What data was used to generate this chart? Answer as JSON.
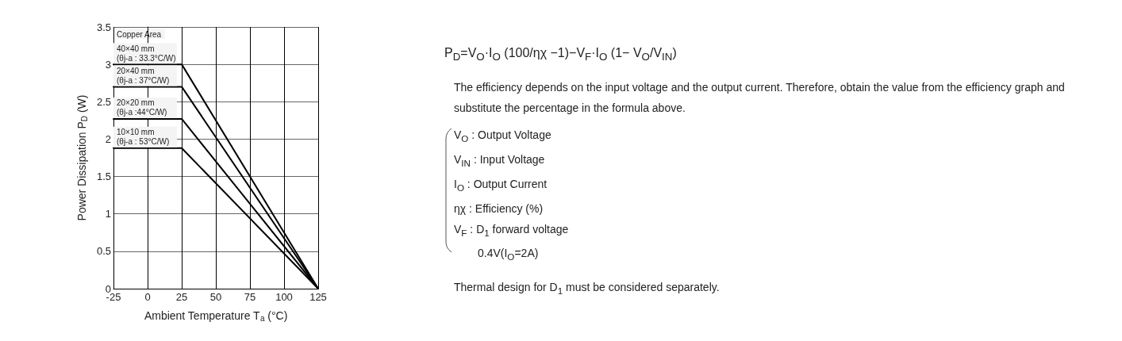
{
  "chart_data": {
    "type": "line",
    "xlabel": "Ambient Temperature T$_{a}$ (°C)",
    "ylabel": "Power Dissipation P$_{D}$ (W)",
    "legend_title": "Copper Area",
    "x": [
      -25,
      25,
      125
    ],
    "series": [
      {
        "name": "40×40 mm (θj-a : 33.3°C/W)",
        "color": "#000000",
        "values": [
          3.0,
          3.0,
          0
        ]
      },
      {
        "name": "20×40 mm (θj-a : 37°C/W)",
        "color": "#000000",
        "values": [
          2.7,
          2.7,
          0
        ]
      },
      {
        "name": "20×20 mm (θj-a :44°C/W)",
        "color": "#000000",
        "values": [
          2.27,
          2.27,
          0
        ]
      },
      {
        "name": "10×10 mm (θj-a : 53°C/W)",
        "color": "#000000",
        "values": [
          1.88,
          1.88,
          0
        ]
      }
    ],
    "xlim": [
      -25,
      125
    ],
    "xticks": [
      -25,
      0,
      25,
      50,
      75,
      100,
      125
    ],
    "ylim": [
      0,
      3.5
    ],
    "yticks": [
      0,
      0.5,
      1,
      1.5,
      2,
      2.5,
      3,
      3.5
    ],
    "grid": true,
    "legend": false,
    "marker": "none",
    "line_style": "solid",
    "annotations": [
      "P$_{D}$=V$_{O}$·I$_{O}$ (100/ηχ −1)−V$_{F}$·I$_{O}$ (1− V$_{O}$/V$_{IN}$)",
      "The efficiency depends on the input voltage and the output current. Therefore, obtain the value from the efficiency graph and substitute the percentage in the formula above.",
      "V$_{O}$ : Output Voltage",
      "V$_{IN}$ : Input Voltage",
      "I$_{O}$ : Output Current",
      "ηχ : Efficiency (%)",
      "V$_{F}$ : D$_{1}$ forward voltage",
      "0.4V(I$_{O}$=2A)",
      "Thermal design for D$_{1}$ must be considered separately."
    ]
  }
}
